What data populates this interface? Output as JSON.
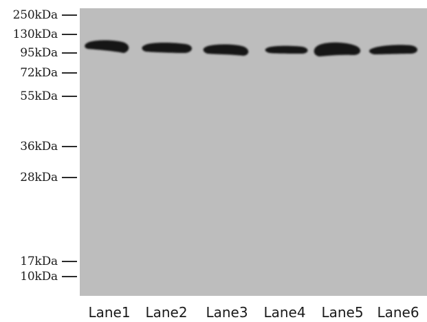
{
  "markers": [
    {
      "label": "250kDa"
    },
    {
      "label": "130kDa"
    },
    {
      "label": "95kDa"
    },
    {
      "label": "72kDa"
    },
    {
      "label": "55kDa"
    },
    {
      "label": "36kDa"
    },
    {
      "label": "28kDa"
    },
    {
      "label": "17kDa"
    },
    {
      "label": "10kDa"
    }
  ],
  "lanes": [
    {
      "label": "Lane1"
    },
    {
      "label": "Lane2"
    },
    {
      "label": "Lane3"
    },
    {
      "label": "Lane4"
    },
    {
      "label": "Lane5"
    },
    {
      "label": "Lane6"
    }
  ],
  "colors": {
    "membrane": "#bdbdbd",
    "band": "#141414"
  }
}
